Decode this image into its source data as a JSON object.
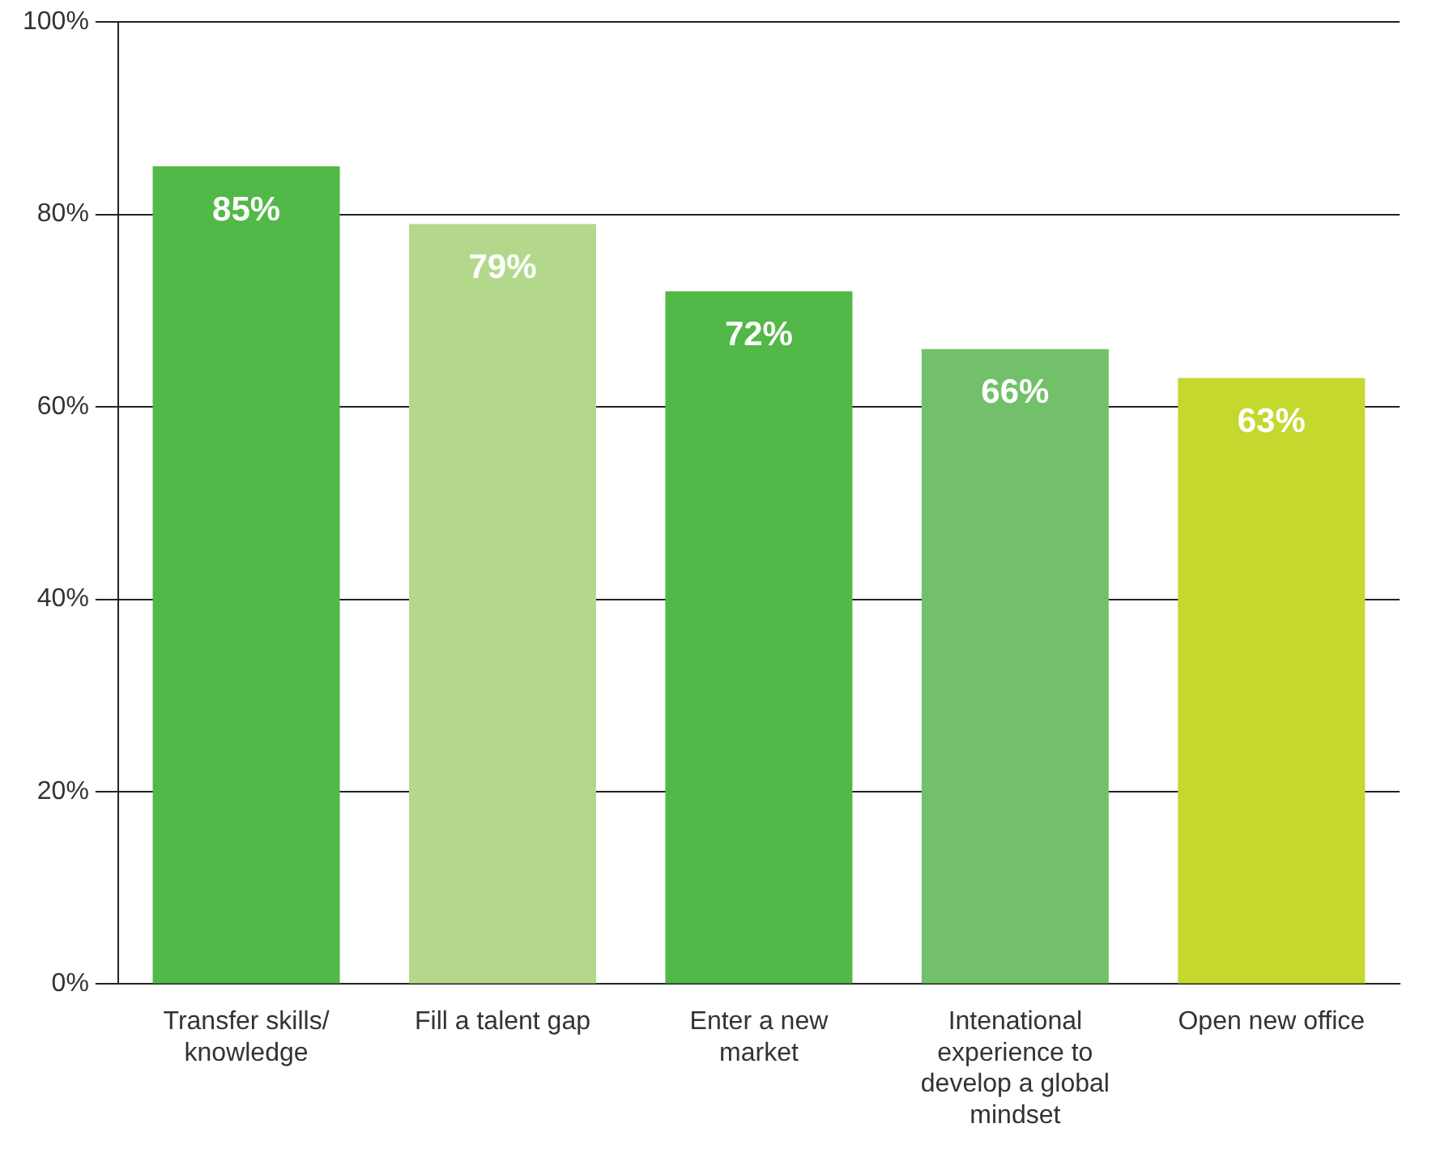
{
  "chart_data": {
    "type": "bar",
    "categories": [
      "Transfer skills/ knowledge",
      "Fill a talent gap",
      "Enter a new market",
      "Intenational experience to develop a global mindset",
      "Open new office"
    ],
    "values": [
      85,
      79,
      72,
      66,
      63
    ],
    "colors": [
      "#52b848",
      "#b3d88c",
      "#52b848",
      "#72c16a",
      "#c4d82e"
    ],
    "value_labels": [
      "85%",
      "79%",
      "72%",
      "66%",
      "63%"
    ],
    "ylim": [
      0,
      100
    ],
    "yticks": [
      {
        "value": 0,
        "label": "0%"
      },
      {
        "value": 20,
        "label": "20%"
      },
      {
        "value": 40,
        "label": "40%"
      },
      {
        "value": 60,
        "label": "60%"
      },
      {
        "value": 80,
        "label": "80%"
      },
      {
        "value": 100,
        "label": "100%"
      }
    ],
    "grid": "y"
  }
}
